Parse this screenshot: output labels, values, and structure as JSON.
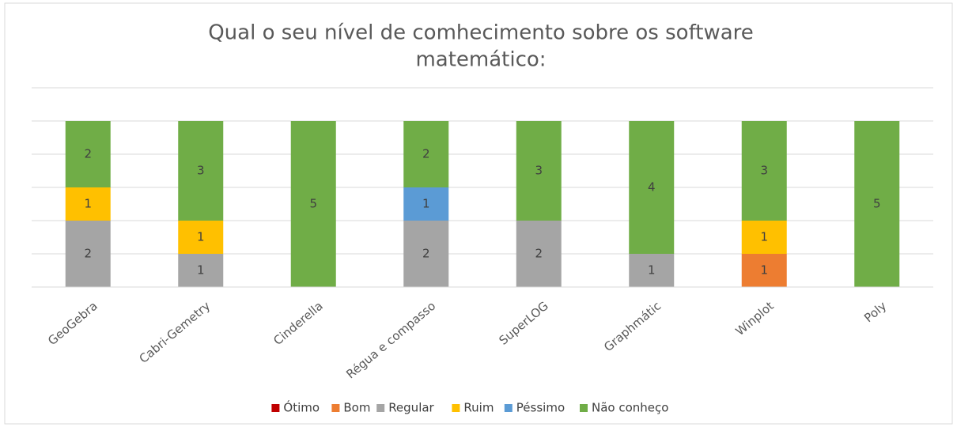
{
  "chart_data": {
    "type": "stacked_bar",
    "title": [
      "Qual o seu nível de comhecimento sobre os software",
      "matemático:"
    ],
    "categories": [
      "GeoGebra",
      "Cabri-Gemetry",
      "Cinderella",
      "Régua e compasso",
      "SuperLOG",
      "Graphmátic",
      "Winplot",
      "Poly"
    ],
    "series": [
      {
        "name": "Ótimo",
        "color": "#c00000",
        "values": [
          null,
          null,
          null,
          null,
          null,
          null,
          null,
          null
        ]
      },
      {
        "name": "Bom",
        "color": "#ed7d31",
        "values": [
          null,
          null,
          null,
          null,
          null,
          null,
          1,
          null
        ]
      },
      {
        "name": "Regular",
        "color": "#a5a5a5",
        "values": [
          2,
          1,
          null,
          2,
          2,
          1,
          null,
          null
        ]
      },
      {
        "name": "Ruim",
        "color": "#ffc000",
        "values": [
          1,
          1,
          null,
          null,
          null,
          null,
          1,
          null
        ]
      },
      {
        "name": "Péssimo",
        "color": "#5b9bd5",
        "values": [
          null,
          null,
          null,
          1,
          null,
          null,
          null,
          null
        ]
      },
      {
        "name": "Não conheço",
        "color": "#70ad47",
        "values": [
          2,
          3,
          5,
          2,
          3,
          4,
          3,
          5
        ]
      }
    ],
    "ylim": [
      0,
      6
    ],
    "yticks": [
      0,
      1,
      2,
      3,
      4,
      5,
      6
    ],
    "grid": true,
    "legend": "bottom"
  }
}
